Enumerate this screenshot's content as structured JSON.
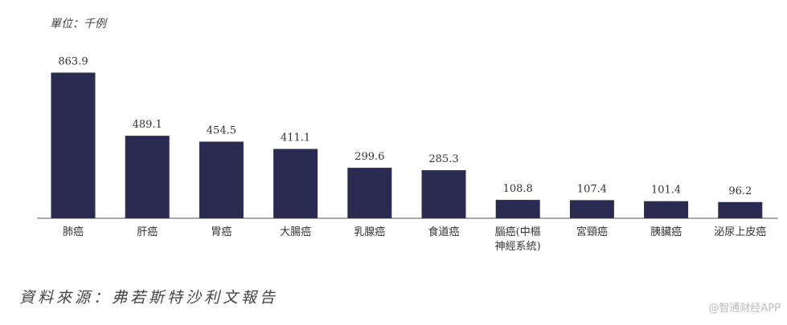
{
  "unit_label": "單位：千例",
  "source_note": "資料來源：弗若斯特沙利文報告",
  "watermark": "@智通财经APP",
  "chart_data": {
    "type": "bar",
    "title": "",
    "xlabel": "",
    "ylabel": "",
    "bar_color": "#2b2b52",
    "ylim": [
      0,
      900
    ],
    "categories": [
      "肺癌",
      "肝癌",
      "胃癌",
      "大腸癌",
      "乳腺癌",
      "食道癌",
      "腦癌(中樞神經系統)",
      "宮頸癌",
      "胰臟癌",
      "泌尿上皮癌"
    ],
    "category_lines": [
      [
        "肺癌"
      ],
      [
        "肝癌"
      ],
      [
        "胃癌"
      ],
      [
        "大腸癌"
      ],
      [
        "乳腺癌"
      ],
      [
        "食道癌"
      ],
      [
        "腦癌(中樞",
        "神經系統)"
      ],
      [
        "宮頸癌"
      ],
      [
        "胰臟癌"
      ],
      [
        "泌尿上皮癌"
      ]
    ],
    "values": [
      863.9,
      489.1,
      454.5,
      411.1,
      299.6,
      285.3,
      108.8,
      107.4,
      101.4,
      96.2
    ],
    "value_labels": [
      "863.9",
      "489.1",
      "454.5",
      "411.1",
      "299.6",
      "285.3",
      "108.8",
      "107.4",
      "101.4",
      "96.2"
    ]
  }
}
